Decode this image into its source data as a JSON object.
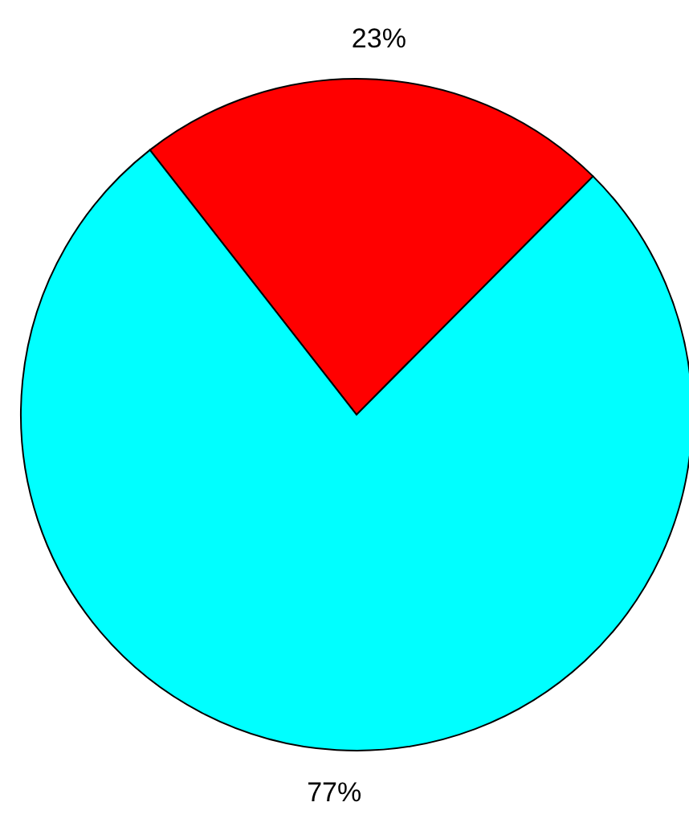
{
  "chart_data": {
    "type": "pie",
    "categories": [
      null,
      null
    ],
    "values": [
      23,
      77
    ],
    "colors": [
      "#ff0000",
      "#00ffff"
    ],
    "value_labels": [
      "23%",
      "77%"
    ]
  }
}
